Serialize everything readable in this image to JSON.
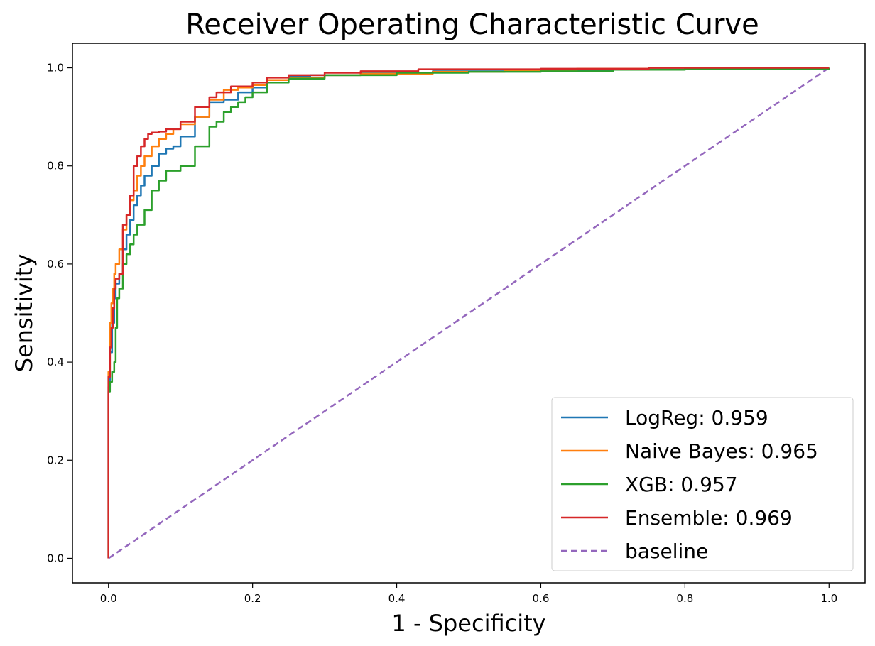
{
  "chart_data": {
    "type": "line",
    "title": "Receiver Operating Characteristic Curve",
    "xlabel": "1 - Specificity",
    "ylabel": "Sensitivity",
    "xlim": [
      -0.05,
      1.05
    ],
    "ylim": [
      -0.05,
      1.05
    ],
    "xticks": [
      0.0,
      0.2,
      0.4,
      0.6,
      0.8,
      1.0
    ],
    "yticks": [
      0.0,
      0.2,
      0.4,
      0.6,
      0.8,
      1.0
    ],
    "xtick_labels": [
      "0.0",
      "0.2",
      "0.4",
      "0.6",
      "0.8",
      "1.0"
    ],
    "ytick_labels": [
      "0.0",
      "0.2",
      "0.4",
      "0.6",
      "0.8",
      "1.0"
    ],
    "grid": false,
    "legend_position": "lower-right",
    "series": [
      {
        "name": "LogReg: 0.959",
        "color": "#1f77b4",
        "style": "solid",
        "x": [
          0.0,
          0.0,
          0.002,
          0.005,
          0.008,
          0.01,
          0.015,
          0.02,
          0.025,
          0.03,
          0.035,
          0.04,
          0.045,
          0.05,
          0.06,
          0.07,
          0.08,
          0.09,
          0.1,
          0.12,
          0.14,
          0.16,
          0.18,
          0.2,
          0.22,
          0.25,
          0.28,
          0.35,
          0.45,
          0.55,
          0.7,
          0.8,
          1.0
        ],
        "y": [
          0.0,
          0.35,
          0.42,
          0.48,
          0.53,
          0.56,
          0.58,
          0.63,
          0.66,
          0.69,
          0.72,
          0.74,
          0.76,
          0.78,
          0.8,
          0.825,
          0.835,
          0.84,
          0.86,
          0.9,
          0.93,
          0.935,
          0.95,
          0.96,
          0.975,
          0.983,
          0.985,
          0.99,
          0.993,
          0.995,
          0.997,
          0.999,
          1.0
        ]
      },
      {
        "name": "Naive Bayes: 0.965",
        "color": "#ff7f0e",
        "style": "solid",
        "x": [
          0.0,
          0.0,
          0.002,
          0.004,
          0.006,
          0.008,
          0.01,
          0.015,
          0.02,
          0.025,
          0.03,
          0.035,
          0.04,
          0.045,
          0.05,
          0.06,
          0.07,
          0.08,
          0.09,
          0.1,
          0.12,
          0.14,
          0.16,
          0.18,
          0.2,
          0.22,
          0.25,
          0.3,
          0.35,
          0.45,
          0.55,
          0.65,
          0.75,
          1.0
        ],
        "y": [
          0.0,
          0.38,
          0.48,
          0.52,
          0.55,
          0.58,
          0.6,
          0.63,
          0.67,
          0.7,
          0.73,
          0.75,
          0.78,
          0.8,
          0.82,
          0.84,
          0.855,
          0.865,
          0.875,
          0.885,
          0.9,
          0.935,
          0.955,
          0.96,
          0.965,
          0.975,
          0.98,
          0.985,
          0.988,
          0.992,
          0.995,
          0.998,
          1.0,
          1.0
        ]
      },
      {
        "name": "XGB: 0.957",
        "color": "#2ca02c",
        "style": "solid",
        "x": [
          0.0,
          0.0,
          0.002,
          0.005,
          0.008,
          0.01,
          0.012,
          0.015,
          0.02,
          0.025,
          0.03,
          0.035,
          0.04,
          0.05,
          0.06,
          0.07,
          0.08,
          0.1,
          0.12,
          0.14,
          0.15,
          0.16,
          0.17,
          0.18,
          0.19,
          0.2,
          0.22,
          0.25,
          0.3,
          0.4,
          0.5,
          0.6,
          0.7,
          0.8,
          1.0
        ],
        "y": [
          0.0,
          0.34,
          0.36,
          0.38,
          0.4,
          0.47,
          0.53,
          0.55,
          0.6,
          0.62,
          0.64,
          0.66,
          0.68,
          0.71,
          0.75,
          0.77,
          0.79,
          0.8,
          0.84,
          0.88,
          0.89,
          0.91,
          0.92,
          0.93,
          0.94,
          0.95,
          0.97,
          0.978,
          0.985,
          0.99,
          0.992,
          0.993,
          0.996,
          0.998,
          1.0
        ]
      },
      {
        "name": "Ensemble: 0.969",
        "color": "#d62728",
        "style": "solid",
        "x": [
          0.0,
          0.0,
          0.002,
          0.004,
          0.006,
          0.008,
          0.01,
          0.015,
          0.02,
          0.025,
          0.03,
          0.035,
          0.04,
          0.045,
          0.05,
          0.055,
          0.06,
          0.07,
          0.08,
          0.1,
          0.12,
          0.14,
          0.15,
          0.17,
          0.2,
          0.22,
          0.25,
          0.3,
          0.35,
          0.43,
          0.6,
          0.75,
          1.0
        ],
        "y": [
          0.0,
          0.37,
          0.43,
          0.47,
          0.51,
          0.55,
          0.57,
          0.58,
          0.68,
          0.7,
          0.74,
          0.8,
          0.82,
          0.84,
          0.855,
          0.865,
          0.868,
          0.87,
          0.875,
          0.89,
          0.92,
          0.94,
          0.95,
          0.962,
          0.97,
          0.98,
          0.985,
          0.99,
          0.993,
          0.997,
          0.998,
          1.0,
          1.0
        ]
      },
      {
        "name": "baseline",
        "color": "#9467bd",
        "style": "dashed",
        "x": [
          0.0,
          1.0
        ],
        "y": [
          0.0,
          1.0
        ]
      }
    ]
  }
}
